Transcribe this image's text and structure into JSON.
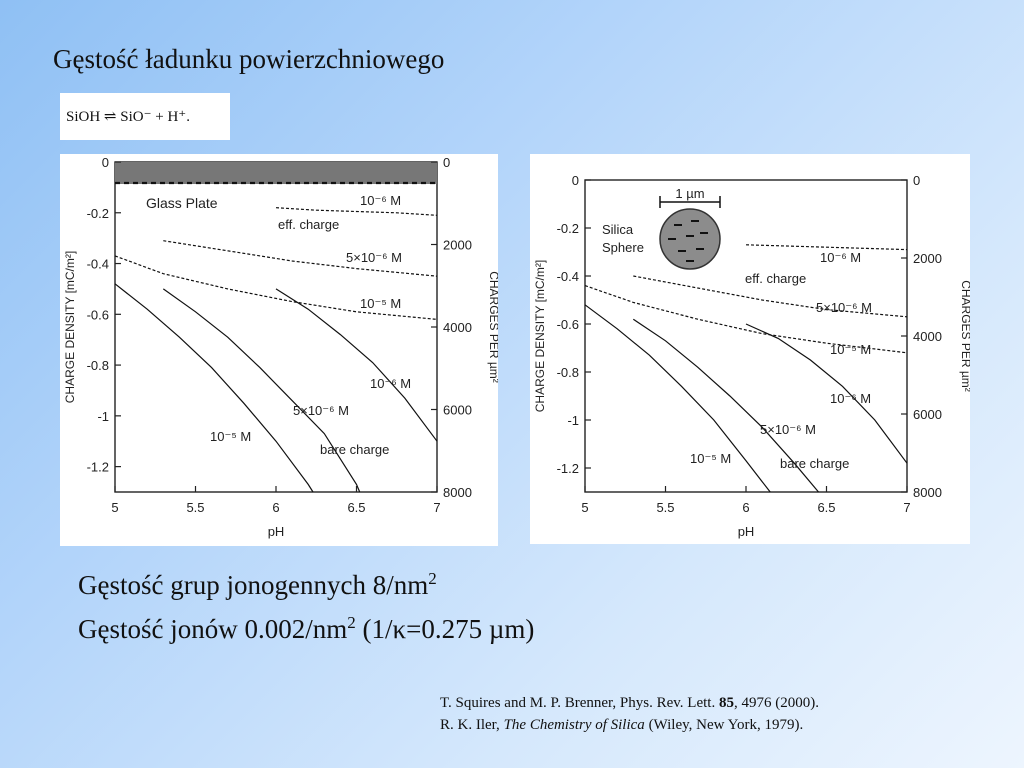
{
  "slide": {
    "title": "Gęstość ładunku powierzchniowego",
    "reaction": "SiOH ⇌ SiO⁻ + H⁺.",
    "stat_line1_main": "Gęstość grup jonogennych 8/nm",
    "stat_line1_sup": "2",
    "stat_line2_main": "Gęstość jonów 0.002/nm",
    "stat_line2_sup": "2",
    "stat_line2_rest": " (1/κ=0.275 µm)",
    "ref1_authors": "T. Squires and M. P. Brenner, Phys. Rev. Lett. ",
    "ref1_volume": "85",
    "ref1_rest": ", 4976 (2000).",
    "ref2_authors": "R. K. Iler, ",
    "ref2_title": "The Chemistry of Silica",
    "ref2_rest": " (Wiley, New York, 1979)."
  },
  "colors": {
    "curve": "#111111",
    "plate_top": "#555555",
    "sphere": "#8c8c8c"
  },
  "chart_data": [
    {
      "type": "line",
      "xlabel": "pH",
      "ylabel": "CHARGE DENSITY [mC/m²]",
      "y2label": "CHARGES PER µm²",
      "xlim": [
        5,
        7
      ],
      "ylim": [
        -1.3,
        0
      ],
      "xticks": [
        "5",
        "5.5",
        "6",
        "6.5",
        "7"
      ],
      "yticks": [
        "0",
        "-0.2",
        "-0.4",
        "-0.6",
        "-0.8",
        "-1",
        "-1.2"
      ],
      "y2ticks": [
        "0",
        "2000",
        "4000",
        "6000",
        "8000"
      ],
      "inset": "Glass Plate",
      "series": [
        {
          "group": "bare",
          "name": "10⁻⁵ M",
          "x": [
            5.0,
            5.2,
            5.4,
            5.6,
            5.8,
            6.0,
            6.2,
            6.23
          ],
          "y": [
            -0.48,
            -0.58,
            -0.69,
            -0.81,
            -0.95,
            -1.1,
            -1.27,
            -1.3
          ]
        },
        {
          "group": "bare",
          "name": "5×10⁻⁶ M",
          "x": [
            5.3,
            5.5,
            5.7,
            5.9,
            6.1,
            6.3,
            6.5,
            6.52
          ],
          "y": [
            -0.5,
            -0.59,
            -0.69,
            -0.81,
            -0.94,
            -1.07,
            -1.27,
            -1.3
          ]
        },
        {
          "group": "bare",
          "name": "10⁻⁶ M",
          "x": [
            6.0,
            6.2,
            6.4,
            6.6,
            6.8,
            7.0
          ],
          "y": [
            -0.5,
            -0.58,
            -0.68,
            -0.79,
            -0.93,
            -1.1
          ]
        },
        {
          "group": "eff",
          "name": "10⁻⁶ M",
          "x": [
            6.0,
            6.25,
            6.5,
            6.75,
            7.0
          ],
          "y": [
            -0.18,
            -0.19,
            -0.195,
            -0.2,
            -0.21
          ]
        },
        {
          "group": "eff",
          "name": "5×10⁻⁶ M",
          "x": [
            5.3,
            5.7,
            6.1,
            6.5,
            7.0
          ],
          "y": [
            -0.31,
            -0.35,
            -0.39,
            -0.42,
            -0.45
          ]
        },
        {
          "group": "eff",
          "name": "10⁻⁵ M",
          "x": [
            5.0,
            5.3,
            5.7,
            6.1,
            6.5,
            7.0
          ],
          "y": [
            -0.37,
            -0.44,
            -0.5,
            -0.55,
            -0.59,
            -0.62
          ]
        }
      ],
      "labels": [
        "10⁻⁶ M",
        "eff. charge",
        "5×10⁻⁶ M",
        "10⁻⁵ M",
        "10⁻⁶ M",
        "5×10⁻⁶ M",
        "bare charge",
        "10⁻⁵ M"
      ]
    },
    {
      "type": "line",
      "xlabel": "pH",
      "ylabel": "CHARGE DENSITY [mC/m²]",
      "y2label": "CHARGES PER µm²",
      "xlim": [
        5,
        7
      ],
      "ylim": [
        -1.3,
        0
      ],
      "xticks": [
        "5",
        "5.5",
        "6",
        "6.5",
        "7"
      ],
      "yticks": [
        "0",
        "-0.2",
        "-0.4",
        "-0.6",
        "-0.8",
        "-1",
        "-1.2"
      ],
      "y2ticks": [
        "0",
        "2000",
        "4000",
        "6000",
        "8000"
      ],
      "inset": [
        "1 µm",
        "Silica",
        "Sphere"
      ],
      "series": [
        {
          "group": "bare",
          "name": "10⁻⁵ M",
          "x": [
            5.0,
            5.2,
            5.4,
            5.6,
            5.8,
            6.0,
            6.15
          ],
          "y": [
            -0.52,
            -0.62,
            -0.73,
            -0.86,
            -1.0,
            -1.17,
            -1.3
          ]
        },
        {
          "group": "bare",
          "name": "5×10⁻⁶ M",
          "x": [
            5.3,
            5.5,
            5.7,
            5.9,
            6.1,
            6.3,
            6.45
          ],
          "y": [
            -0.58,
            -0.67,
            -0.78,
            -0.9,
            -1.03,
            -1.18,
            -1.3
          ]
        },
        {
          "group": "bare",
          "name": "10⁻⁶ M",
          "x": [
            6.0,
            6.2,
            6.4,
            6.6,
            6.8,
            7.0
          ],
          "y": [
            -0.6,
            -0.66,
            -0.75,
            -0.86,
            -1.0,
            -1.18
          ]
        },
        {
          "group": "eff",
          "name": "10⁻⁶ M",
          "x": [
            6.0,
            6.25,
            6.5,
            6.75,
            7.0
          ],
          "y": [
            -0.27,
            -0.275,
            -0.28,
            -0.285,
            -0.29
          ]
        },
        {
          "group": "eff",
          "name": "5×10⁻⁶ M",
          "x": [
            5.3,
            5.7,
            6.1,
            6.5,
            7.0
          ],
          "y": [
            -0.4,
            -0.45,
            -0.5,
            -0.54,
            -0.57
          ]
        },
        {
          "group": "eff",
          "name": "10⁻⁵ M",
          "x": [
            5.0,
            5.3,
            5.7,
            6.1,
            6.5,
            7.0
          ],
          "y": [
            -0.44,
            -0.51,
            -0.58,
            -0.64,
            -0.68,
            -0.72
          ]
        }
      ],
      "labels": [
        "10⁻⁶ M",
        "eff. charge",
        "5×10⁻⁶ M",
        "10⁻⁵ M",
        "10⁻⁶ M",
        "5×10⁻⁶ M",
        "bare charge",
        "10⁻⁵ M"
      ]
    }
  ]
}
